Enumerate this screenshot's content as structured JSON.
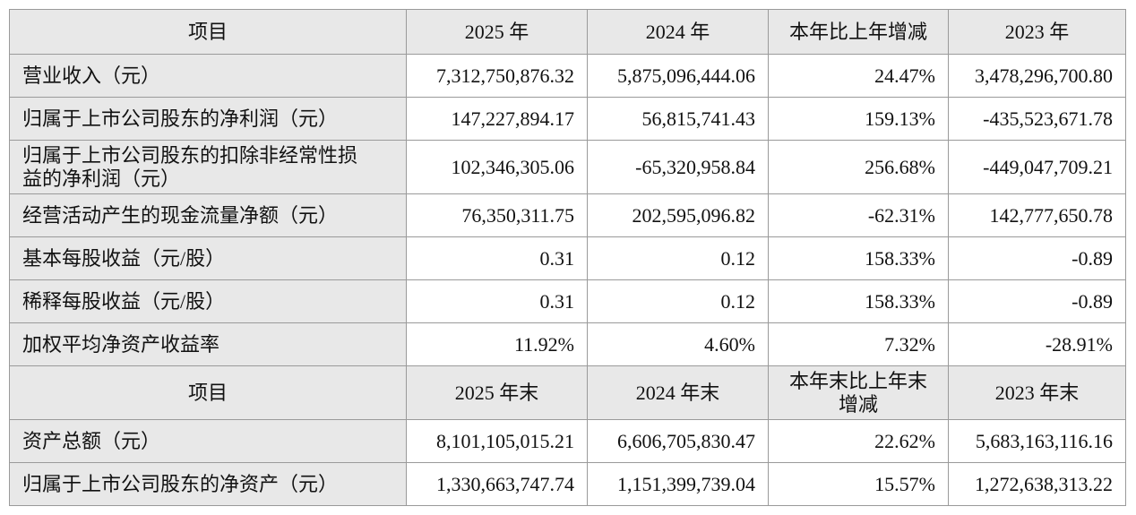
{
  "table": {
    "sections": [
      {
        "header": [
          "项目",
          "2025 年",
          "2024 年",
          "本年比上年增减",
          "2023 年"
        ],
        "rows": [
          [
            "营业收入（元）",
            "7,312,750,876.32",
            "5,875,096,444.06",
            "24.47%",
            "3,478,296,700.80"
          ],
          [
            "归属于上市公司股东的净利润（元）",
            "147,227,894.17",
            "56,815,741.43",
            "159.13%",
            "-435,523,671.78"
          ],
          [
            "归属于上市公司股东的扣除非经常性损益的净利润（元）",
            "102,346,305.06",
            "-65,320,958.84",
            "256.68%",
            "-449,047,709.21"
          ],
          [
            "经营活动产生的现金流量净额（元）",
            "76,350,311.75",
            "202,595,096.82",
            "-62.31%",
            "142,777,650.78"
          ],
          [
            "基本每股收益（元/股）",
            "0.31",
            "0.12",
            "158.33%",
            "-0.89"
          ],
          [
            "稀释每股收益（元/股）",
            "0.31",
            "0.12",
            "158.33%",
            "-0.89"
          ],
          [
            "加权平均净资产收益率",
            "11.92%",
            "4.60%",
            "7.32%",
            "-28.91%"
          ]
        ]
      },
      {
        "header": [
          "项目",
          "2025 年末",
          "2024 年末",
          "本年末比上年末增减",
          "2023 年末"
        ],
        "rows": [
          [
            "资产总额（元）",
            "8,101,105,015.21",
            "6,606,705,830.47",
            "22.62%",
            "5,683,163,116.16"
          ],
          [
            "归属于上市公司股东的净资产（元）",
            "1,330,663,747.74",
            "1,151,399,739.04",
            "15.57%",
            "1,272,638,313.22"
          ]
        ]
      }
    ]
  }
}
